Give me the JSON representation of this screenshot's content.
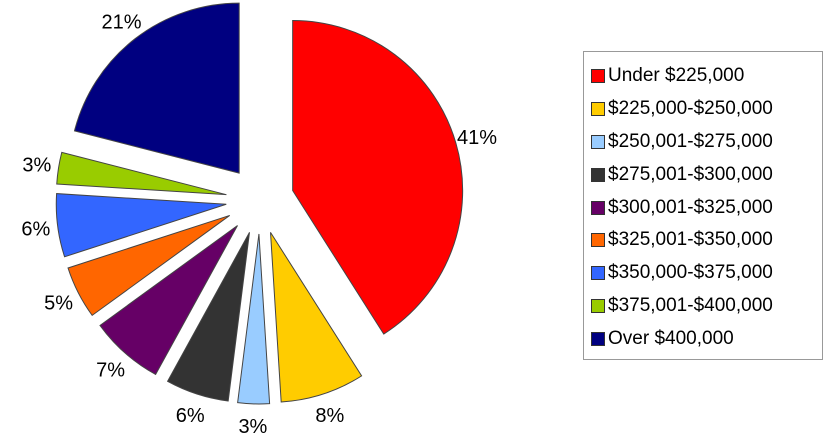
{
  "chart_data": {
    "type": "pie",
    "title": "",
    "categories": [
      "Under $225,000",
      "$225,000-$250,000",
      "$250,001-$275,000",
      "$275,001-$300,000",
      "$300,001-$325,000",
      "$325,001-$350,000",
      "$350,000-$375,000",
      "$375,001-$400,000",
      "Over $400,000"
    ],
    "values": [
      41,
      8,
      3,
      6,
      7,
      5,
      6,
      3,
      21
    ],
    "labels": [
      "41%",
      "8%",
      "3%",
      "6%",
      "7%",
      "5%",
      "6%",
      "3%",
      "21%"
    ],
    "colors": [
      "#ff0000",
      "#ffcc00",
      "#99ccff",
      "#333333",
      "#660066",
      "#ff6600",
      "#3366ff",
      "#99cc00",
      "#000080"
    ],
    "exploded": true,
    "legend_position": "right"
  }
}
